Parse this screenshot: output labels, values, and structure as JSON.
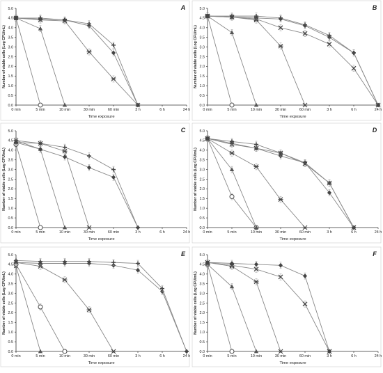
{
  "figure": {
    "marker_color": "#555555",
    "line_color": "#888888",
    "axis_color": "#333333"
  },
  "chart_data": [
    {
      "type": "line",
      "panel_label": "A",
      "xlabel": "Time exposure",
      "ylabel": "Number of viable cells (Log CFU/mL)",
      "categories": [
        "0 min",
        "5 min",
        "10 min",
        "30 min",
        "60 min",
        "3 h",
        "6 h",
        "24 h"
      ],
      "ylim": [
        0,
        5
      ],
      "ytick_labels": [
        "0.0",
        "0.5",
        "1.0",
        "1.5",
        "2.0",
        "2.5",
        "3.0",
        "3.5",
        "4.0",
        "4.5",
        "5.0"
      ],
      "grid": false,
      "series": [
        {
          "marker": "circle-open",
          "values": [
            4.5,
            0.0,
            null,
            null,
            null,
            null,
            null,
            null
          ]
        },
        {
          "marker": "triangle",
          "values": [
            4.5,
            3.95,
            0.0,
            null,
            null,
            null,
            null,
            null
          ]
        },
        {
          "marker": "star",
          "values": [
            4.5,
            4.4,
            4.35,
            2.75,
            1.35,
            0.0,
            null,
            null
          ]
        },
        {
          "marker": "diamond",
          "values": [
            4.5,
            4.45,
            4.4,
            4.1,
            2.7,
            0.0,
            null,
            null
          ]
        },
        {
          "marker": "plus",
          "values": [
            4.5,
            4.5,
            4.4,
            4.2,
            3.1,
            0.0,
            null,
            null
          ]
        }
      ]
    },
    {
      "type": "line",
      "panel_label": "B",
      "xlabel": "Time exposure",
      "ylabel": "Number of viable cells (Log CFU/mL)",
      "categories": [
        "0 min",
        "5 min",
        "10 min",
        "30 min",
        "60 min",
        "3 h",
        "6 h",
        "24 h"
      ],
      "ylim": [
        0,
        5
      ],
      "ytick_labels": [
        "0.0",
        "0.5",
        "1.0",
        "1.5",
        "2.0",
        "2.5",
        "3.0",
        "3.5",
        "4.0",
        "4.5",
        "5.0"
      ],
      "grid": false,
      "series": [
        {
          "marker": "circle-open",
          "values": [
            4.6,
            0.0,
            null,
            null,
            null,
            null,
            null,
            null
          ]
        },
        {
          "marker": "triangle",
          "values": [
            4.6,
            3.75,
            0.0,
            null,
            null,
            null,
            null,
            null
          ]
        },
        {
          "marker": "star",
          "values": [
            4.6,
            4.55,
            4.4,
            3.05,
            0.0,
            null,
            null,
            null
          ]
        },
        {
          "marker": "cross",
          "values": [
            4.6,
            4.55,
            4.45,
            4.0,
            3.7,
            3.15,
            1.9,
            0.0
          ]
        },
        {
          "marker": "diamond",
          "values": [
            4.6,
            4.55,
            4.5,
            4.45,
            4.1,
            3.5,
            2.7,
            0.0
          ]
        },
        {
          "marker": "plus",
          "values": [
            4.6,
            4.6,
            4.6,
            4.5,
            4.15,
            3.6,
            2.7,
            0.0
          ]
        }
      ]
    },
    {
      "type": "line",
      "panel_label": "C",
      "xlabel": "Time exposure",
      "ylabel": "Number of viable cells (Log CFU/mL)",
      "categories": [
        "0 min",
        "5 min",
        "10 min",
        "30 min",
        "60 min",
        "3 h",
        "6 h",
        "24 h"
      ],
      "ylim": [
        0,
        5
      ],
      "ytick_labels": [
        "0.0",
        "0.5",
        "1.0",
        "1.5",
        "2.0",
        "2.5",
        "3.0",
        "3.5",
        "4.0",
        "4.5",
        "5.0"
      ],
      "grid": false,
      "series": [
        {
          "marker": "circle-open",
          "values": [
            4.3,
            0.0,
            null,
            null,
            null,
            null,
            null,
            null
          ]
        },
        {
          "marker": "triangle",
          "values": [
            4.4,
            4.05,
            0.0,
            null,
            null,
            null,
            null,
            null
          ]
        },
        {
          "marker": "star",
          "values": [
            4.5,
            4.35,
            3.95,
            0.0,
            null,
            null,
            null,
            null
          ]
        },
        {
          "marker": "diamond",
          "values": [
            4.5,
            4.05,
            3.65,
            3.1,
            2.6,
            0.0,
            null,
            null
          ]
        },
        {
          "marker": "plus",
          "values": [
            4.4,
            4.35,
            4.15,
            3.7,
            3.0,
            0.0,
            null,
            null
          ]
        }
      ]
    },
    {
      "type": "line",
      "panel_label": "D",
      "xlabel": "Time exposure",
      "ylabel": "Number of viable cells (Log CFU/mL)",
      "categories": [
        "0 min",
        "5 min",
        "10 min",
        "30 min",
        "60 min",
        "3 h",
        "6 h",
        "24 h"
      ],
      "ylim": [
        0,
        5
      ],
      "ytick_labels": [
        "0.0",
        "0.5",
        "1.0",
        "1.5",
        "2.0",
        "2.5",
        "3.0",
        "3.5",
        "4.0",
        "4.5",
        "5.0"
      ],
      "grid": false,
      "series": [
        {
          "marker": "circle-open",
          "values": [
            4.6,
            1.6,
            0.0,
            null,
            null,
            null,
            null,
            null
          ]
        },
        {
          "marker": "triangle",
          "values": [
            4.6,
            3.0,
            0.0,
            null,
            null,
            null,
            null,
            null
          ]
        },
        {
          "marker": "star",
          "values": [
            4.6,
            3.85,
            3.15,
            1.45,
            0.0,
            null,
            null,
            null
          ]
        },
        {
          "marker": "cross",
          "values": [
            4.6,
            4.3,
            4.1,
            3.85,
            3.3,
            2.3,
            0.0,
            null
          ]
        },
        {
          "marker": "diamond",
          "values": [
            4.6,
            4.35,
            4.1,
            3.7,
            3.35,
            1.8,
            0.0,
            null
          ]
        },
        {
          "marker": "plus",
          "values": [
            4.6,
            4.45,
            4.3,
            3.85,
            3.35,
            2.3,
            0.0,
            null
          ]
        }
      ]
    },
    {
      "type": "line",
      "panel_label": "E",
      "xlabel": "Time exposure",
      "ylabel": "Number of viable cells (Log CFU/mL)",
      "categories": [
        "0 min",
        "5 min",
        "10 min",
        "30 min",
        "60 min",
        "3 h",
        "6 h",
        "24 h"
      ],
      "ylim": [
        0,
        5
      ],
      "ytick_labels": [
        "0.0",
        "0.5",
        "1.0",
        "1.5",
        "2.0",
        "2.5",
        "3.0",
        "3.5",
        "4.0",
        "4.5",
        "5.0"
      ],
      "grid": false,
      "series": [
        {
          "marker": "triangle",
          "values": [
            4.4,
            0.0,
            null,
            null,
            null,
            null,
            null,
            null
          ]
        },
        {
          "marker": "circle-open",
          "values": [
            4.5,
            2.3,
            0.0,
            null,
            null,
            null,
            null,
            null
          ]
        },
        {
          "marker": "star",
          "values": [
            4.6,
            4.4,
            3.7,
            2.15,
            0.0,
            null,
            null,
            null
          ]
        },
        {
          "marker": "diamond",
          "values": [
            4.6,
            4.55,
            4.55,
            4.55,
            4.45,
            4.2,
            3.1,
            0.0
          ]
        },
        {
          "marker": "plus",
          "values": [
            4.7,
            4.65,
            4.65,
            4.65,
            4.6,
            4.55,
            3.25,
            0.0
          ]
        }
      ]
    },
    {
      "type": "line",
      "panel_label": "F",
      "xlabel": "Time exposure",
      "ylabel": "Number of viable cells (Log CFU/mL)",
      "categories": [
        "0 min",
        "5 min",
        "10 min",
        "30 min",
        "60 min",
        "3 h",
        "6 h",
        "24 h"
      ],
      "ylim": [
        0,
        5
      ],
      "ytick_labels": [
        "0.0",
        "0.5",
        "1.0",
        "1.5",
        "2.0",
        "2.5",
        "3.0",
        "3.5",
        "4.0",
        "4.5",
        "5.0"
      ],
      "grid": false,
      "series": [
        {
          "marker": "circle-open",
          "values": [
            4.5,
            0.0,
            null,
            null,
            null,
            null,
            null,
            null
          ]
        },
        {
          "marker": "triangle",
          "values": [
            4.5,
            3.35,
            0.0,
            null,
            null,
            null,
            null,
            null
          ]
        },
        {
          "marker": "star",
          "values": [
            4.6,
            4.4,
            3.6,
            0.0,
            null,
            null,
            null,
            null
          ]
        },
        {
          "marker": "cross",
          "values": [
            4.6,
            4.45,
            4.25,
            3.85,
            2.45,
            0.0,
            null,
            null
          ]
        },
        {
          "marker": "diamond",
          "values": [
            4.6,
            4.55,
            4.5,
            4.45,
            3.9,
            0.0,
            null,
            null
          ]
        }
      ]
    }
  ]
}
